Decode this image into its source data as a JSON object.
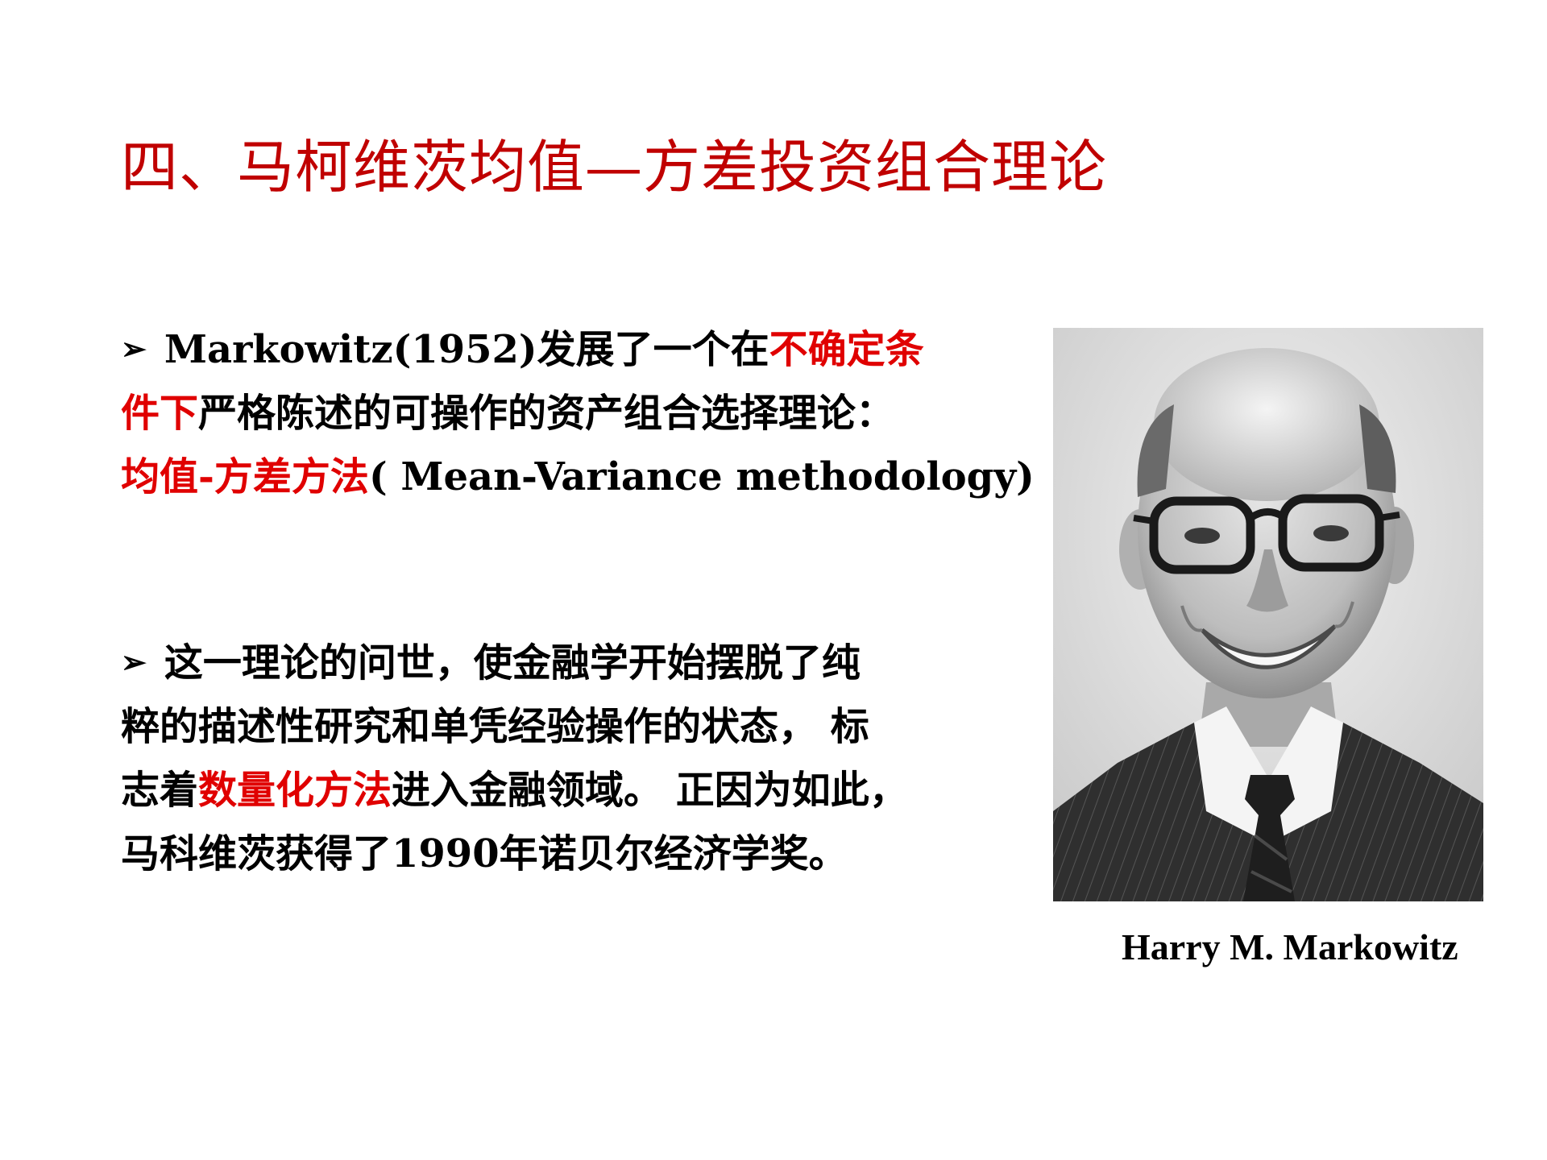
{
  "slide": {
    "title": "四、马柯维茨均值—方差投资组合理论",
    "colors": {
      "title": "#c00000",
      "highlight": "#e00000",
      "body": "#000000"
    },
    "paragraph1": {
      "bullet": "➢",
      "l1_a": "Markowitz(1952)发展了一个在",
      "l1_b": "不确定条",
      "l2_a": "件下",
      "l2_b": "严格陈述的可操作的资产组合选择理论：",
      "l3_a": "均值-方差方法",
      "l3_b": "( Mean-Variance methodology)"
    },
    "paragraph2": {
      "bullet": "➢",
      "l1": "这一理论的问世，使金融学开始摆脱了纯",
      "l2": "粹的描述性研究和单凭经验操作的状态， 标",
      "l3_a": "志着",
      "l3_b": "数量化方法",
      "l3_c": "进入金融领域。 正因为如此，",
      "l4": "马科维茨获得了1990年诺贝尔经济学奖。"
    },
    "photo": {
      "caption": "Harry M. Markowitz"
    }
  }
}
